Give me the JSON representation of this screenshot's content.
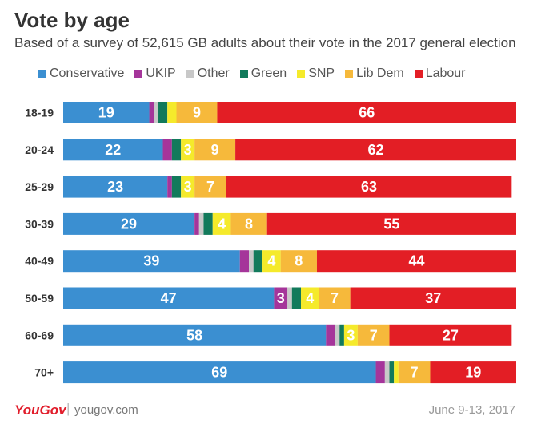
{
  "header": {
    "title": "Vote by age",
    "subtitle": "Based of a survey of 52,615 GB adults about their vote in the 2017 general election"
  },
  "footer": {
    "logo_text": "YouGov",
    "separator": "|",
    "url": "yougov.com",
    "date": "June 9-13, 2017"
  },
  "chart_data": {
    "type": "bar",
    "orientation": "horizontal",
    "stacked": true,
    "title": "Vote by age",
    "xlabel": "",
    "ylabel": "",
    "xlim": [
      0,
      100
    ],
    "legend_position": "top",
    "categories": [
      "18-19",
      "20-24",
      "25-29",
      "30-39",
      "40-49",
      "50-59",
      "60-69",
      "70+"
    ],
    "series": [
      {
        "name": "Conservative",
        "color": "#3b8fd1",
        "values": [
          19,
          22,
          23,
          29,
          39,
          47,
          58,
          69
        ],
        "labels": [
          "19",
          "22",
          "23",
          "29",
          "39",
          "47",
          "58",
          "69"
        ]
      },
      {
        "name": "UKIP",
        "color": "#a5359a",
        "values": [
          1,
          2,
          1,
          1,
          2,
          3,
          2,
          2
        ],
        "labels": [
          "",
          "",
          "",
          "",
          "",
          "3",
          "",
          ""
        ]
      },
      {
        "name": "Other",
        "color": "#c8c8c8",
        "values": [
          1,
          0,
          0,
          1,
          1,
          1,
          1,
          1
        ],
        "labels": [
          "",
          "",
          "",
          "",
          "",
          "",
          "",
          ""
        ]
      },
      {
        "name": "Green",
        "color": "#127a5b",
        "values": [
          2,
          2,
          2,
          2,
          2,
          2,
          1,
          1
        ],
        "labels": [
          "",
          "",
          "",
          "",
          "",
          "",
          "",
          ""
        ]
      },
      {
        "name": "SNP",
        "color": "#f5ea2b",
        "values": [
          2,
          3,
          3,
          4,
          4,
          4,
          3,
          1
        ],
        "labels": [
          "",
          "3",
          "3",
          "4",
          "4",
          "4",
          "3",
          ""
        ]
      },
      {
        "name": "Lib Dem",
        "color": "#f6b93b",
        "values": [
          9,
          9,
          7,
          8,
          8,
          7,
          7,
          7
        ],
        "labels": [
          "9",
          "9",
          "7",
          "8",
          "8",
          "7",
          "7",
          "7"
        ]
      },
      {
        "name": "Labour",
        "color": "#e31e25",
        "values": [
          66,
          62,
          63,
          55,
          44,
          37,
          27,
          19
        ],
        "labels": [
          "66",
          "62",
          "63",
          "55",
          "44",
          "37",
          "27",
          "19"
        ]
      }
    ]
  }
}
